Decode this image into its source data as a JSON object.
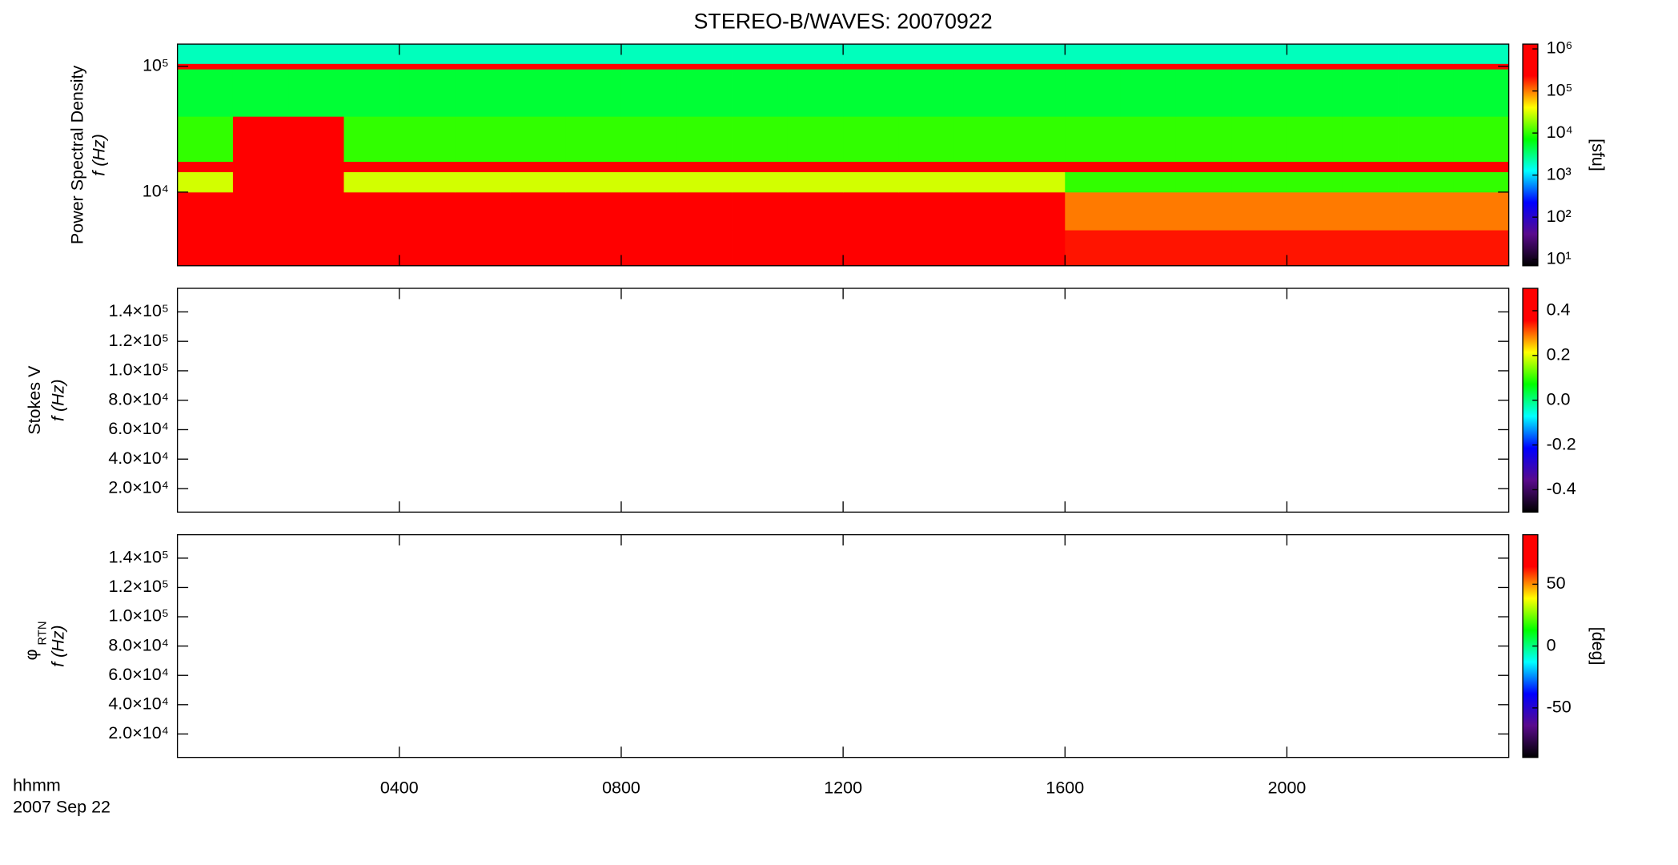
{
  "chart_data": {
    "type": "spectrogram",
    "title": "STEREO-B/WAVES: 20070922",
    "x_label": "hhmm",
    "x_sublabel": "2007 Sep 22",
    "xlim": [
      0,
      24
    ],
    "xticks": [
      {
        "value": 4,
        "label": "0400"
      },
      {
        "value": 8,
        "label": "0800"
      },
      {
        "value": 12,
        "label": "1200"
      },
      {
        "value": 16,
        "label": "1600"
      },
      {
        "value": 20,
        "label": "2000"
      }
    ],
    "x_bins": [
      0,
      1,
      2,
      3,
      4,
      5,
      6,
      7,
      8,
      9,
      10,
      11,
      12,
      13,
      14,
      15,
      16,
      17,
      18,
      19,
      20,
      21,
      22,
      23,
      24
    ],
    "colormap": [
      "#000000",
      "#5a0a8c",
      "#0000ff",
      "#00ffff",
      "#00ff00",
      "#ffff00",
      "#ff0000",
      "#ff0000"
    ],
    "panels": [
      {
        "ylabel": "Power Spectral Density",
        "ylabel2": "f (Hz)",
        "log_y": true,
        "ylim": [
          2600,
          150000
        ],
        "yticks": [
          {
            "value": 10000,
            "label": "10⁴"
          },
          {
            "value": 100000,
            "label": "10⁵"
          }
        ],
        "clabel": "[sfu]",
        "log_c": true,
        "clim": [
          7,
          1300000
        ],
        "cticks": [
          {
            "value": 10,
            "label": "10¹"
          },
          {
            "value": 100,
            "label": "10²"
          },
          {
            "value": 1000,
            "label": "10³"
          },
          {
            "value": 10000,
            "label": "10⁴"
          },
          {
            "value": 100000,
            "label": "10⁵"
          },
          {
            "value": 1000000,
            "label": "10⁶"
          }
        ],
        "y_bins": [
          2600,
          5000,
          10000,
          14500,
          17500,
          40000,
          95000,
          105000,
          150000
        ],
        "z": [
          [
            1000000,
            1000000,
            1000000,
            1000000,
            1000000,
            1000000,
            1000000,
            1000000,
            1000000,
            1000000,
            1000000,
            1000000,
            1000000,
            1000000,
            1000000,
            1000000,
            200000,
            200000,
            200000,
            200000,
            200000,
            200000,
            200000,
            200000
          ],
          [
            1000000,
            1000000,
            1000000,
            500000,
            300000,
            500000,
            300000,
            1000000,
            300000,
            500000,
            300000,
            500000,
            300000,
            500000,
            1000000,
            1000000,
            100000,
            100000,
            100000,
            100000,
            100000,
            100000,
            100000,
            100000
          ],
          [
            30000,
            300000,
            300000,
            30000,
            30000,
            30000,
            30000,
            30000,
            30000,
            30000,
            30000,
            30000,
            30000,
            30000,
            30000,
            30000,
            10000,
            10000,
            10000,
            10000,
            10000,
            10000,
            10000,
            10000
          ],
          [
            1000000,
            1000000,
            1000000,
            1000000,
            1000000,
            1000000,
            1000000,
            1000000,
            1000000,
            1000000,
            1000000,
            1000000,
            1000000,
            1000000,
            1000000,
            1000000,
            1000000,
            1000000,
            1000000,
            1000000,
            1000000,
            1000000,
            1000000,
            1000000
          ],
          [
            10000,
            300000,
            300000,
            10000,
            10000,
            10000,
            10000,
            10000,
            10000,
            10000,
            10000,
            10000,
            10000,
            10000,
            10000,
            10000,
            10000,
            10000,
            10000,
            10000,
            10000,
            10000,
            10000,
            10000
          ],
          [
            5000,
            5000,
            5000,
            5000,
            5000,
            5000,
            5000,
            5000,
            5000,
            5000,
            5000,
            5000,
            5000,
            5000,
            5000,
            5000,
            5000,
            5000,
            5000,
            5000,
            5000,
            5000,
            5000,
            5000
          ],
          [
            1000000,
            1000000,
            1000000,
            1000000,
            1000000,
            1000000,
            1000000,
            1000000,
            1000000,
            1000000,
            1000000,
            1000000,
            1000000,
            1000000,
            1000000,
            1000000,
            1000000,
            1000000,
            1000000,
            1000000,
            1000000,
            1000000,
            1000000,
            1000000
          ],
          [
            2000,
            2000,
            2000,
            2000,
            2000,
            2000,
            2000,
            2000,
            2000,
            2000,
            2000,
            2000,
            2000,
            2000,
            2000,
            2000,
            2000,
            2000,
            2000,
            2000,
            2000,
            2000,
            2000,
            2000
          ]
        ]
      },
      {
        "ylabel": "Stokes V",
        "ylabel2": "f (Hz)",
        "log_y": false,
        "ylim": [
          4000,
          156000
        ],
        "yticks": [
          {
            "value": 20000,
            "label": "2.0×10⁴"
          },
          {
            "value": 40000,
            "label": "4.0×10⁴"
          },
          {
            "value": 60000,
            "label": "6.0×10⁴"
          },
          {
            "value": 80000,
            "label": "8.0×10⁴"
          },
          {
            "value": 100000,
            "label": "1.0×10⁵"
          },
          {
            "value": 120000,
            "label": "1.2×10⁵"
          },
          {
            "value": 140000,
            "label": "1.4×10⁵"
          }
        ],
        "log_c": false,
        "clim": [
          -0.5,
          0.5
        ],
        "cticks": [
          -0.4,
          -0.2,
          {
            "value": 0,
            "label": "0.0"
          },
          0.2,
          0.4
        ]
      },
      {
        "ylabel_symbol": "φ",
        "ylabel_subscript": "RTN",
        "ylabel2": "f (Hz)",
        "log_y": false,
        "ylim": [
          4000,
          156000
        ],
        "yticks": [
          {
            "value": 20000,
            "label": "2.0×10⁴"
          },
          {
            "value": 40000,
            "label": "4.0×10⁴"
          },
          {
            "value": 60000,
            "label": "6.0×10⁴"
          },
          {
            "value": 80000,
            "label": "8.0×10⁴"
          },
          {
            "value": 100000,
            "label": "1.0×10⁵"
          },
          {
            "value": 120000,
            "label": "1.2×10⁵"
          },
          {
            "value": 140000,
            "label": "1.4×10⁵"
          }
        ],
        "clabel": "[deg]",
        "log_c": false,
        "clim": [
          -90,
          90
        ],
        "cticks": [
          -50,
          0,
          50
        ]
      }
    ]
  }
}
